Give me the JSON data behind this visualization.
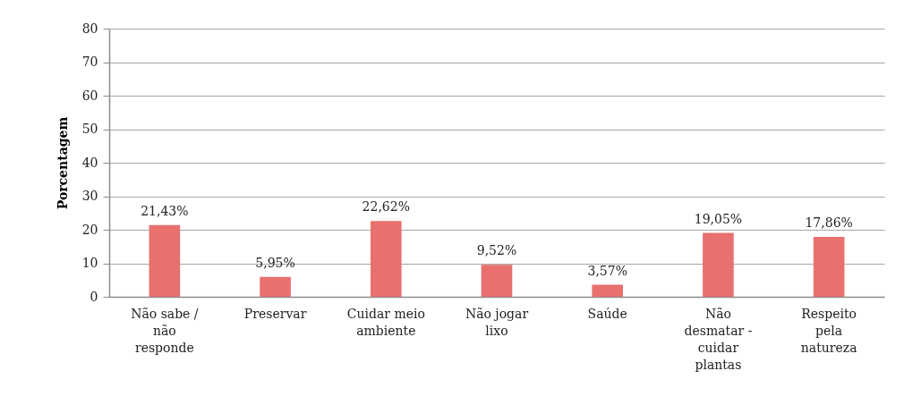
{
  "chart_data": {
    "type": "bar",
    "categories": [
      "Não sabe / não responde",
      "Preservar",
      "Cuidar meio ambiente",
      "Não jogar lixo",
      "Saúde",
      "Não desmatar - cuidar plantas",
      "Respeito pela natureza"
    ],
    "values": [
      21.43,
      5.95,
      22.62,
      9.52,
      3.57,
      19.05,
      17.86
    ],
    "value_labels": [
      "21,43%",
      "5,95%",
      "22,62%",
      "9,52%",
      "3,57%",
      "19,05%",
      "17,86%"
    ],
    "color": "#e8706f",
    "ylabel": "Porcentagem",
    "ylim": [
      0,
      80
    ],
    "yticks": [
      0,
      10,
      20,
      30,
      40,
      50,
      60,
      70,
      80
    ],
    "grid": "y"
  }
}
